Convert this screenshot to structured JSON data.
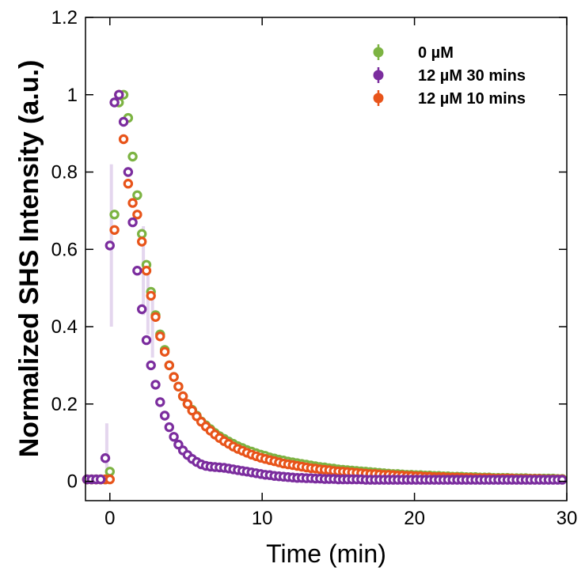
{
  "chart_data": {
    "type": "scatter",
    "xlabel": "Time (min)",
    "ylabel": "Normalized SHS Intensity (a.u.)",
    "xlim": [
      -1.6,
      30
    ],
    "ylim": [
      -0.05,
      1.2
    ],
    "xticks": [
      0,
      10,
      20,
      30
    ],
    "yticks": [
      0,
      0.2,
      0.4,
      0.6,
      0.8,
      1,
      1.2
    ],
    "xtick_labels": [
      "0",
      "10",
      "20",
      "30"
    ],
    "ytick_labels": [
      "0",
      "0.2",
      "0.4",
      "0.6",
      "0.8",
      "1",
      "1.2"
    ],
    "grid": false,
    "legend_position": "top-right",
    "markers": "open circles with error bars",
    "series": [
      {
        "name": "0 µM",
        "color": "#7cb342",
        "x_start": -1.5,
        "x_step": 0.3,
        "y": [
          0.005,
          0.005,
          0.005,
          0.005,
          0.005,
          0.025,
          0.69,
          0.98,
          1.0,
          0.94,
          0.84,
          0.74,
          0.64,
          0.56,
          0.49,
          0.43,
          0.38,
          0.34,
          0.3,
          0.27,
          0.245,
          0.22,
          0.2,
          0.185,
          0.17,
          0.155,
          0.145,
          0.135,
          0.125,
          0.117,
          0.11,
          0.103,
          0.097,
          0.091,
          0.086,
          0.081,
          0.077,
          0.073,
          0.069,
          0.066,
          0.062,
          0.059,
          0.056,
          0.054,
          0.051,
          0.049,
          0.047,
          0.045,
          0.043,
          0.041,
          0.039,
          0.037,
          0.036,
          0.034,
          0.033,
          0.031,
          0.03,
          0.029,
          0.028,
          0.027,
          0.026,
          0.025,
          0.024,
          0.023,
          0.022,
          0.021,
          0.02,
          0.019,
          0.019,
          0.018,
          0.017,
          0.017,
          0.016,
          0.016,
          0.015,
          0.015,
          0.014,
          0.014,
          0.013,
          0.013,
          0.012,
          0.012,
          0.012,
          0.011,
          0.011,
          0.011,
          0.01,
          0.01,
          0.01,
          0.009,
          0.009,
          0.009,
          0.009,
          0.008,
          0.008,
          0.008,
          0.008,
          0.007,
          0.007,
          0.007,
          0.007,
          0.007,
          0.007,
          0.006,
          0.006,
          0.006,
          0.006,
          0.006
        ]
      },
      {
        "name": "12 µM 30 mins",
        "color": "#7b2d9e",
        "x_start": -1.5,
        "x_step": 0.3,
        "y": [
          0.005,
          0.005,
          0.005,
          0.005,
          0.06,
          0.61,
          0.98,
          1.0,
          0.93,
          0.8,
          0.67,
          0.545,
          0.445,
          0.365,
          0.3,
          0.25,
          0.205,
          0.17,
          0.14,
          0.115,
          0.095,
          0.08,
          0.068,
          0.058,
          0.05,
          0.044,
          0.04,
          0.038,
          0.037,
          0.036,
          0.035,
          0.033,
          0.031,
          0.029,
          0.027,
          0.025,
          0.023,
          0.021,
          0.019,
          0.017,
          0.016,
          0.014,
          0.013,
          0.012,
          0.011,
          0.01,
          0.009,
          0.009,
          0.008,
          0.008,
          0.007,
          0.007,
          0.006,
          0.006,
          0.006,
          0.005,
          0.005,
          0.005,
          0.005,
          0.005,
          0.005,
          0.004,
          0.004,
          0.004,
          0.004,
          0.004,
          0.004,
          0.004,
          0.004,
          0.004,
          0.004,
          0.004,
          0.004,
          0.004,
          0.004,
          0.004,
          0.004,
          0.004,
          0.004,
          0.004,
          0.004,
          0.004,
          0.004,
          0.004,
          0.004,
          0.004,
          0.004,
          0.004,
          0.004,
          0.004,
          0.004,
          0.004,
          0.004,
          0.004,
          0.004,
          0.004,
          0.004,
          0.004,
          0.004,
          0.004,
          0.004,
          0.004,
          0.004,
          0.004,
          0.004,
          0.004,
          0.004,
          0.004
        ]
      },
      {
        "name": "12 µM 10 mins",
        "color": "#e8541a",
        "x_start": -1.5,
        "x_step": 0.3,
        "y": [
          0.005,
          0.005,
          0.005,
          0.005,
          0.005,
          0.005,
          0.65,
          1.0,
          0.885,
          0.77,
          0.72,
          0.69,
          0.62,
          0.545,
          0.48,
          0.425,
          0.375,
          0.335,
          0.3,
          0.27,
          0.245,
          0.22,
          0.2,
          0.183,
          0.168,
          0.154,
          0.142,
          0.131,
          0.121,
          0.112,
          0.104,
          0.097,
          0.09,
          0.084,
          0.079,
          0.074,
          0.069,
          0.065,
          0.061,
          0.058,
          0.055,
          0.052,
          0.049,
          0.046,
          0.044,
          0.042,
          0.04,
          0.038,
          0.036,
          0.034,
          0.033,
          0.031,
          0.03,
          0.029,
          0.027,
          0.026,
          0.025,
          0.024,
          0.023,
          0.022,
          0.021,
          0.02,
          0.019,
          0.019,
          0.018,
          0.017,
          0.017,
          0.016,
          0.015,
          0.015,
          0.014,
          0.014,
          0.013,
          0.013,
          0.012,
          0.012,
          0.011,
          0.011,
          0.011,
          0.01,
          0.01,
          0.01,
          0.009,
          0.009,
          0.009,
          0.008,
          0.008,
          0.008,
          0.008,
          0.007,
          0.007,
          0.007,
          0.007,
          0.007,
          0.006,
          0.006,
          0.006,
          0.006,
          0.006,
          0.006,
          0.005,
          0.005,
          0.005,
          0.005,
          0.005,
          0.005,
          0.005,
          0.005
        ]
      }
    ],
    "error_bars": [
      {
        "x": -0.2,
        "lo": 0.0,
        "hi": 0.15
      },
      {
        "x": 0.1,
        "lo": 0.4,
        "hi": 0.82
      },
      {
        "x": 2.2,
        "lo": 0.43,
        "hi": 0.66
      },
      {
        "x": 2.5,
        "lo": 0.38,
        "hi": 0.56
      },
      {
        "x": 2.8,
        "lo": 0.32,
        "hi": 0.48
      }
    ]
  }
}
